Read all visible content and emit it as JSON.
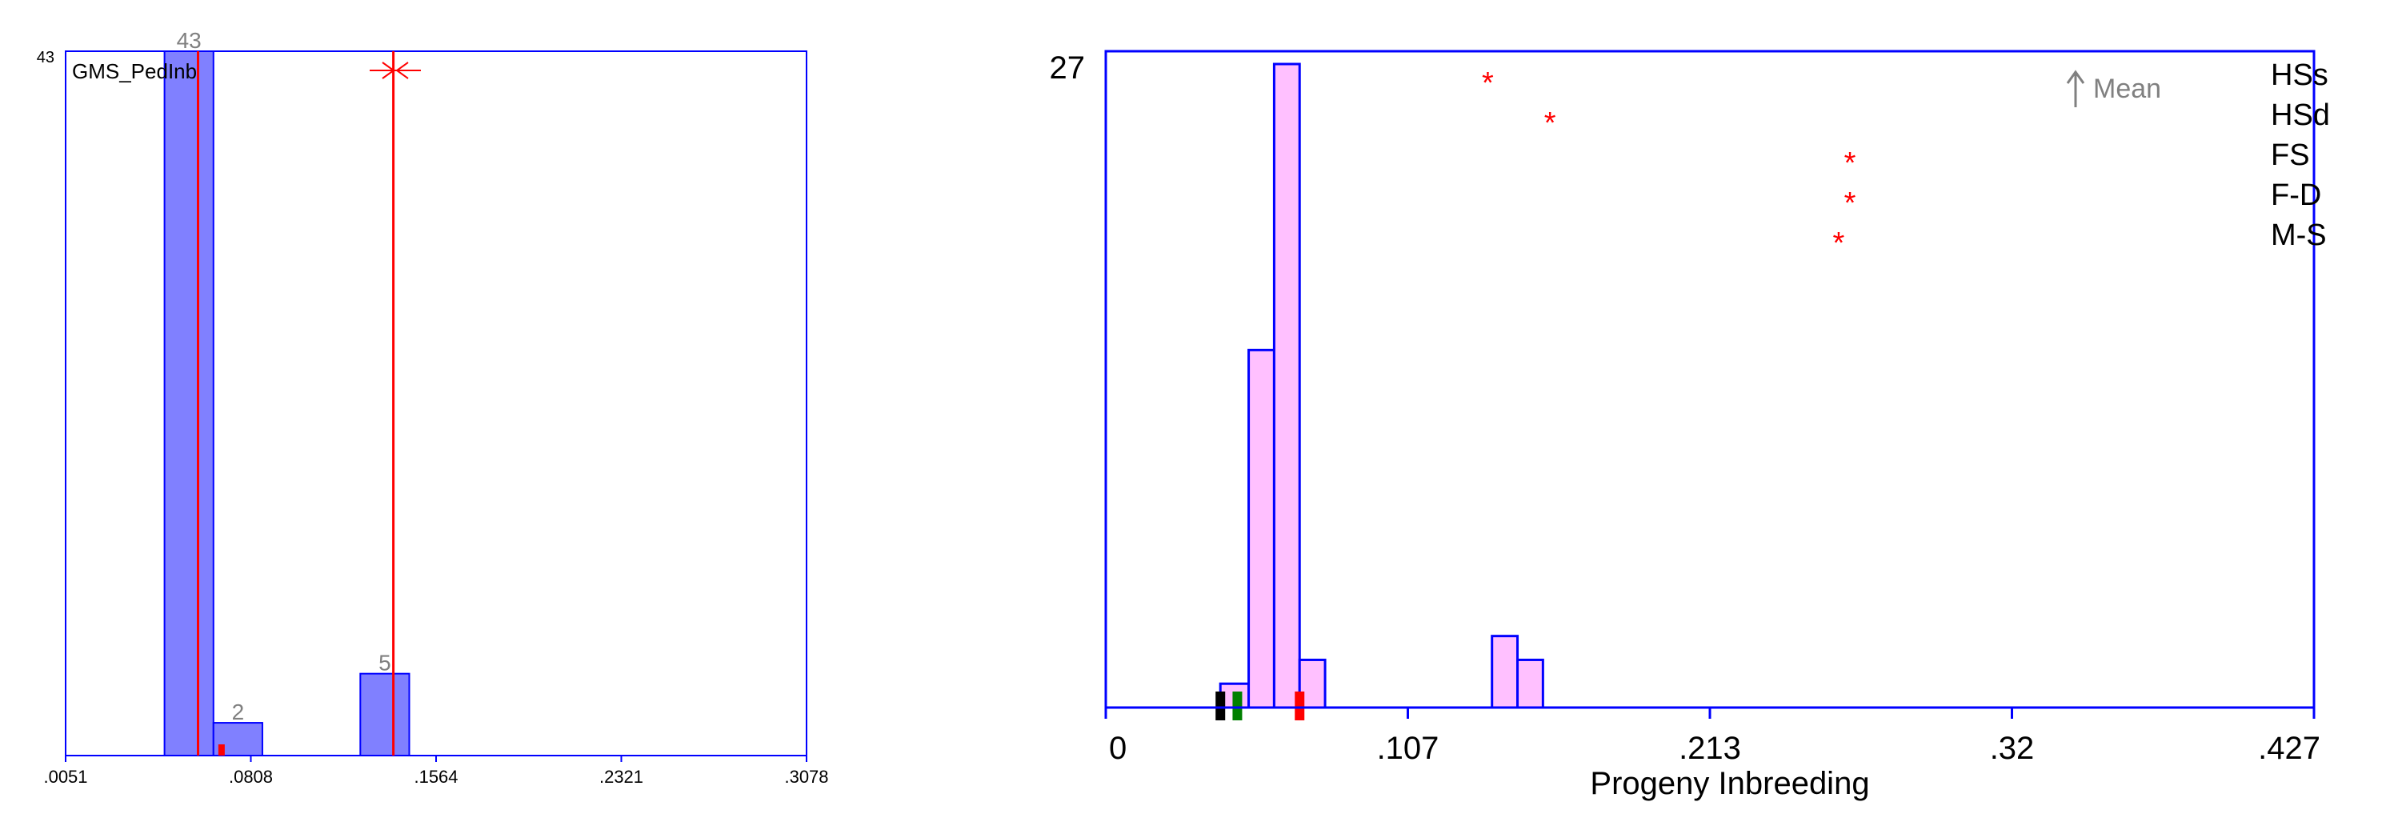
{
  "chart_data": [
    {
      "type": "bar",
      "series_label": "GMS_PedInb",
      "ymax_label": "43",
      "x_ticks": [
        ".0051",
        ".0808",
        ".1564",
        ".2321",
        ".3078"
      ],
      "xlim": [
        0.0051,
        0.3078
      ],
      "ylim": [
        0,
        43
      ],
      "bins": [
        {
          "x0": 0.0455,
          "x1": 0.0655,
          "value": 43,
          "label": "43"
        },
        {
          "x0": 0.0655,
          "x1": 0.0855,
          "value": 2,
          "label": "2"
        },
        {
          "x0": 0.1255,
          "x1": 0.1455,
          "value": 5,
          "label": "5"
        }
      ],
      "vlines": [
        0.0592,
        0.139
      ],
      "red_marker": 0.0688,
      "bar_color": "#8080ff",
      "line_color": "#ff0000",
      "frame_color": "#0000ff"
    },
    {
      "type": "bar",
      "xlabel": "Progeny Inbreeding",
      "ymax_label": "27",
      "x_ticks": [
        "0",
        ".107",
        ".213",
        ".32",
        ".427"
      ],
      "xlim": [
        0,
        0.427
      ],
      "ylim": [
        0,
        27
      ],
      "bins": [
        {
          "x0": 0.0405,
          "x1": 0.0505,
          "value": 1
        },
        {
          "x0": 0.0505,
          "x1": 0.0595,
          "value": 15
        },
        {
          "x0": 0.0595,
          "x1": 0.0685,
          "value": 27
        },
        {
          "x0": 0.0685,
          "x1": 0.0775,
          "value": 2
        },
        {
          "x0": 0.1365,
          "x1": 0.1455,
          "value": 3
        },
        {
          "x0": 0.1455,
          "x1": 0.1545,
          "value": 2
        }
      ],
      "markers": [
        {
          "x": 0.0405,
          "color": "#000000"
        },
        {
          "x": 0.0465,
          "color": "#008000"
        },
        {
          "x": 0.0685,
          "color": "#ff0000"
        }
      ],
      "legend": [
        "HSs",
        "HSd",
        "FS",
        "F-D",
        "M-S"
      ],
      "legend_star_x": [
        0.135,
        0.157,
        0.263,
        0.263,
        0.259
      ],
      "mean_label": "Mean",
      "bar_color": "#ffc0ff",
      "star_color": "#ff0000",
      "frame_color": "#0000ff"
    }
  ]
}
